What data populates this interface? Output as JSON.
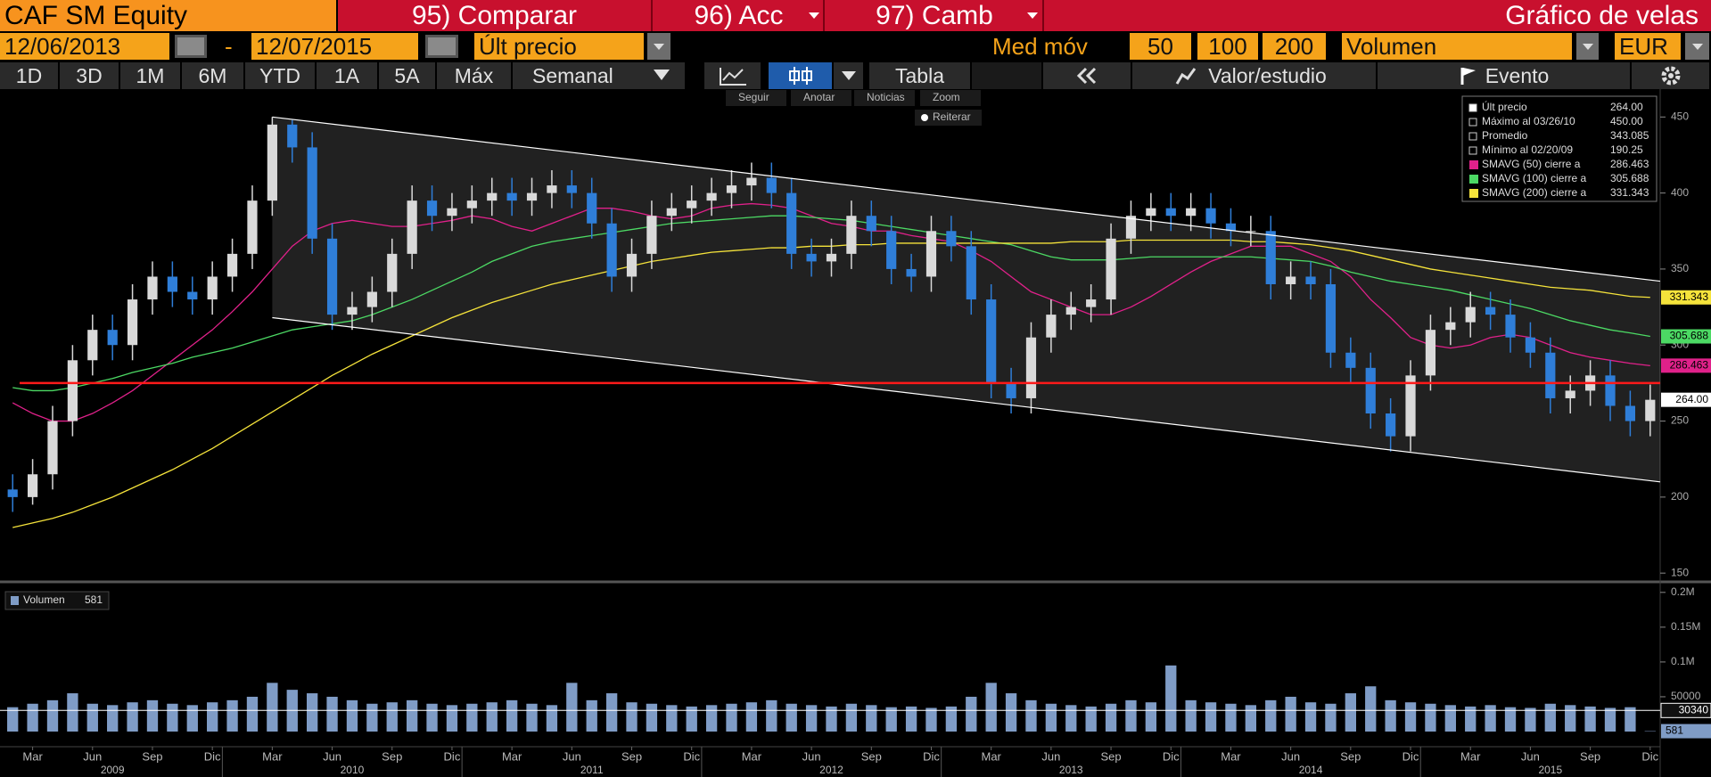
{
  "header": {
    "ticker": "CAF SM Equity",
    "menu": [
      "95) Comparar",
      "96) Acc",
      "97) Camb"
    ],
    "title": "Gráfico de velas"
  },
  "controls": {
    "start": "12/06/2013",
    "separator": "-",
    "end": "12/07/2015",
    "field": "Últ precio",
    "ma_label": "Med móv",
    "ma_periods": [
      "50",
      "100",
      "200"
    ],
    "lower": "Volumen",
    "currency": "EUR"
  },
  "ranges": [
    "1D",
    "3D",
    "1M",
    "6M",
    "YTD",
    "1A",
    "5A",
    "Máx",
    "Semanal"
  ],
  "tabs": {
    "table": "Tabla",
    "study": "Valor/estudio",
    "event": "Evento"
  },
  "tools": [
    "Seguir",
    "Anotar",
    "Noticias",
    "Zoom"
  ],
  "repeat": "Reiterar",
  "chart_data": [
    {
      "type": "candlestick",
      "categories": [
        null,
        "Mar",
        null,
        null,
        "Jun",
        null,
        null,
        "Sep",
        null,
        null,
        "Dic",
        null,
        null,
        "Mar",
        null,
        null,
        "Jun",
        null,
        null,
        "Sep",
        null,
        null,
        "Dic",
        null,
        null,
        "Mar",
        null,
        null,
        "Jun",
        null,
        null,
        "Sep",
        null,
        null,
        "Dic",
        null,
        null,
        "Mar",
        null,
        null,
        "Jun",
        null,
        null,
        "Sep",
        null,
        null,
        "Dic",
        null,
        null,
        "Mar",
        null,
        null,
        "Jun",
        null,
        null,
        "Sep",
        null,
        null,
        "Dic",
        null,
        null,
        "Mar",
        null,
        null,
        "Jun",
        null,
        null,
        "Sep",
        null,
        null,
        "Dic",
        null,
        null,
        "Mar",
        null,
        null,
        "Jun",
        null,
        null,
        "Sep",
        null,
        null,
        "Dic"
      ],
      "years": [
        "2009",
        "2010",
        "2011",
        "2012",
        "2013",
        "2014",
        "2015"
      ],
      "open": [
        205,
        200,
        215,
        250,
        290,
        310,
        300,
        330,
        345,
        335,
        330,
        345,
        360,
        395,
        445,
        430,
        370,
        320,
        325,
        335,
        360,
        395,
        385,
        390,
        395,
        400,
        395,
        400,
        405,
        400,
        380,
        345,
        360,
        385,
        390,
        395,
        400,
        405,
        410,
        400,
        360,
        355,
        360,
        385,
        375,
        350,
        345,
        375,
        365,
        330,
        275,
        265,
        305,
        320,
        325,
        330,
        370,
        385,
        390,
        385,
        390,
        380,
        375,
        375,
        340,
        345,
        340,
        295,
        285,
        255,
        240,
        280,
        310,
        315,
        325,
        320,
        305,
        295,
        265,
        270,
        280,
        260,
        250
      ],
      "high": [
        215,
        225,
        260,
        300,
        320,
        320,
        340,
        355,
        355,
        345,
        355,
        370,
        405,
        450,
        448,
        440,
        380,
        335,
        345,
        370,
        405,
        405,
        400,
        405,
        410,
        410,
        410,
        415,
        415,
        410,
        390,
        370,
        395,
        400,
        405,
        410,
        415,
        420,
        420,
        410,
        370,
        370,
        395,
        395,
        385,
        360,
        385,
        385,
        375,
        340,
        285,
        315,
        330,
        335,
        340,
        380,
        395,
        400,
        400,
        400,
        400,
        390,
        385,
        385,
        355,
        355,
        350,
        305,
        295,
        265,
        290,
        320,
        325,
        335,
        335,
        330,
        315,
        305,
        280,
        290,
        290,
        270,
        274
      ],
      "low": [
        190.25,
        195,
        205,
        240,
        280,
        290,
        290,
        320,
        325,
        320,
        320,
        335,
        350,
        385,
        420,
        360,
        310,
        310,
        315,
        325,
        350,
        375,
        375,
        380,
        385,
        385,
        385,
        390,
        390,
        370,
        335,
        335,
        350,
        375,
        380,
        385,
        390,
        395,
        390,
        350,
        345,
        345,
        350,
        365,
        340,
        335,
        335,
        355,
        320,
        265,
        255,
        255,
        295,
        310,
        315,
        320,
        360,
        375,
        375,
        375,
        370,
        365,
        365,
        330,
        330,
        330,
        285,
        275,
        245,
        230,
        230,
        270,
        300,
        305,
        310,
        295,
        285,
        255,
        255,
        260,
        250,
        240,
        240
      ],
      "close": [
        200,
        215,
        250,
        290,
        310,
        300,
        330,
        345,
        335,
        330,
        345,
        360,
        395,
        445,
        430,
        370,
        320,
        325,
        335,
        360,
        395,
        385,
        390,
        395,
        400,
        395,
        400,
        405,
        400,
        380,
        345,
        360,
        385,
        390,
        395,
        400,
        405,
        410,
        400,
        360,
        355,
        360,
        385,
        375,
        350,
        345,
        375,
        365,
        330,
        275,
        265,
        305,
        320,
        325,
        330,
        370,
        385,
        390,
        385,
        390,
        380,
        375,
        375,
        340,
        345,
        340,
        295,
        285,
        255,
        240,
        280,
        310,
        315,
        325,
        320,
        305,
        295,
        265,
        270,
        280,
        260,
        250,
        264
      ],
      "up_color": "#d9d9d9",
      "down_color": "#2f7ed8",
      "ylim": [
        146,
        466
      ],
      "yticks": [
        150,
        200,
        250,
        300,
        350,
        400,
        450
      ],
      "stats": [
        {
          "label": "Últ precio",
          "value": 264,
          "value_label": "264.00"
        },
        {
          "label": "Máximo al 03/26/10",
          "value": 450,
          "value_label": "450.00"
        },
        {
          "label": "Promedio",
          "value": 343.085
        },
        {
          "label": "Mínimo al 02/20/09",
          "value": 190.25
        }
      ],
      "series": [
        {
          "name": "SMAVG (50) cierre a",
          "color": "#e0218a",
          "values": [
            262,
            255,
            250,
            250,
            255,
            262,
            270,
            280,
            290,
            300,
            310,
            322,
            335,
            350,
            365,
            375,
            380,
            382,
            380,
            378,
            378,
            380,
            382,
            385,
            383,
            378,
            375,
            380,
            385,
            390,
            390,
            388,
            385,
            383,
            385,
            390,
            392,
            393,
            392,
            390,
            385,
            380,
            378,
            375,
            375,
            372,
            370,
            368,
            362,
            355,
            345,
            335,
            330,
            325,
            320,
            320,
            325,
            332,
            340,
            348,
            355,
            360,
            365,
            365,
            365,
            360,
            355,
            345,
            330,
            318,
            305,
            300,
            298,
            300,
            305,
            307,
            305,
            300,
            295,
            292,
            290,
            288,
            286.463
          ]
        },
        {
          "name": "SMAVG (100) cierre a",
          "color": "#4cd964",
          "values": [
            272,
            270,
            270,
            272,
            275,
            278,
            282,
            285,
            288,
            292,
            295,
            298,
            302,
            306,
            310,
            312,
            314,
            316,
            320,
            325,
            330,
            336,
            342,
            348,
            355,
            360,
            365,
            368,
            370,
            372,
            374,
            376,
            378,
            380,
            381,
            382,
            383,
            384,
            385,
            385,
            384,
            383,
            382,
            380,
            378,
            376,
            374,
            372,
            370,
            368,
            366,
            362,
            358,
            356,
            356,
            356,
            357,
            358,
            358,
            358,
            358,
            358,
            358,
            357,
            356,
            355,
            352,
            348,
            345,
            342,
            340,
            338,
            336,
            333,
            330,
            327,
            324,
            320,
            316,
            313,
            310,
            308,
            305.688
          ]
        },
        {
          "name": "SMAVG (200) cierre a",
          "color": "#f5e33b",
          "values": [
            180,
            183,
            186,
            190,
            195,
            200,
            206,
            212,
            218,
            225,
            232,
            240,
            248,
            256,
            264,
            272,
            280,
            287,
            294,
            300,
            306,
            312,
            318,
            323,
            328,
            332,
            336,
            340,
            343,
            346,
            349,
            352,
            355,
            357,
            359,
            361,
            362,
            363,
            364,
            364,
            365,
            365,
            366,
            366,
            367,
            367,
            367,
            367,
            367,
            367,
            367,
            367,
            367,
            368,
            368,
            368,
            369,
            369,
            369,
            369,
            369,
            369,
            368,
            368,
            367,
            366,
            364,
            362,
            359,
            356,
            353,
            350,
            348,
            346,
            344,
            342,
            340,
            338,
            337,
            336,
            334,
            332,
            331.343
          ]
        }
      ],
      "trend_lines": [
        {
          "color": "#ffffff",
          "x": [
            13,
            82.5
          ],
          "y": [
            450,
            342
          ]
        },
        {
          "color": "#ffffff",
          "x": [
            13,
            82.5
          ],
          "y": [
            318,
            210
          ]
        }
      ],
      "hline": {
        "color": "#ff1a1a",
        "value": 275
      }
    },
    {
      "type": "bar",
      "name": "Volumen",
      "color": "#7f9cc6",
      "values": [
        35000,
        40000,
        45000,
        55000,
        40000,
        38000,
        42000,
        45000,
        40000,
        38000,
        42000,
        45000,
        50000,
        70000,
        60000,
        55000,
        50000,
        45000,
        40000,
        42000,
        45000,
        40000,
        38000,
        40000,
        42000,
        45000,
        40000,
        38000,
        70000,
        45000,
        55000,
        42000,
        40000,
        38000,
        36000,
        38000,
        40000,
        42000,
        45000,
        40000,
        38000,
        36000,
        40000,
        38000,
        35000,
        36000,
        34000,
        36000,
        50000,
        70000,
        55000,
        45000,
        40000,
        38000,
        36000,
        40000,
        45000,
        42000,
        95000,
        45000,
        42000,
        40000,
        38000,
        45000,
        50000,
        42000,
        40000,
        55000,
        65000,
        45000,
        42000,
        40000,
        38000,
        36000,
        38000,
        35000,
        34000,
        40000,
        38000,
        36000,
        34000,
        35000,
        581
      ],
      "ylim": [
        0,
        210000
      ],
      "yticks": [
        {
          "value": 200000,
          "label": "0.2M"
        },
        {
          "value": 150000,
          "label": "0.15M"
        },
        {
          "value": 100000,
          "label": "0.1M"
        },
        50000
      ],
      "average": {
        "value": 30340,
        "color": "#ffffff"
      }
    }
  ]
}
